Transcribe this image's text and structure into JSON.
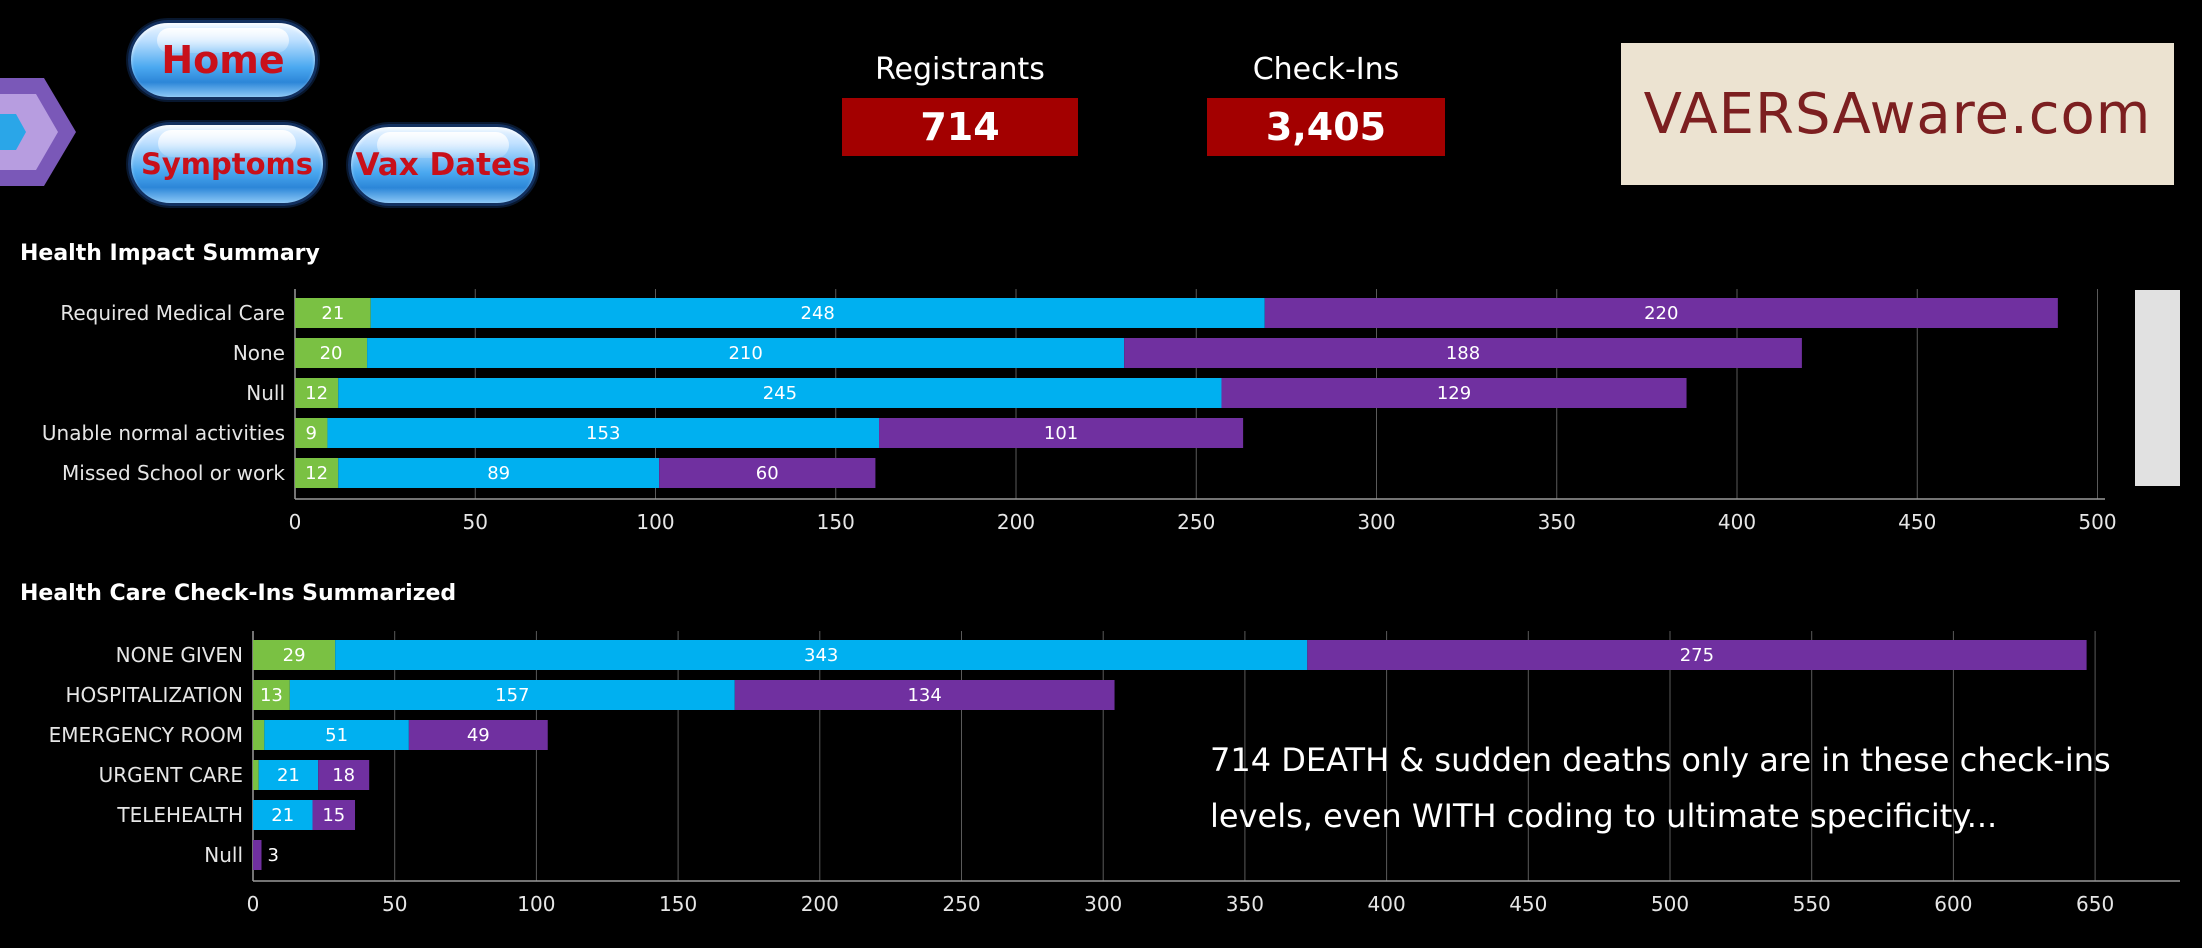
{
  "nav": {
    "home": "Home",
    "symptoms": "Symptoms",
    "vax_dates": "Vax Dates"
  },
  "kpis": {
    "registrants": {
      "label": "Registrants",
      "value": "714"
    },
    "checkins": {
      "label": "Check-Ins",
      "value": "3,405"
    }
  },
  "brand": {
    "text": "VAERSAware.com"
  },
  "annotation": {
    "line1": "714 DEATH & sudden deaths only are in these check-ins",
    "line2": "levels, even WITH coding to ultimate specificity..."
  },
  "colors": {
    "green": "#7ac143",
    "blue": "#00b0f0",
    "purple": "#7030a0",
    "kpi_red": "#a30000",
    "brand_bg": "#ece3d1",
    "brand_text": "#7c1f20"
  },
  "chart_data": [
    {
      "type": "bar",
      "orientation": "horizontal",
      "stacked": true,
      "title": "Health Impact Summary",
      "categories": [
        "Required Medical Care",
        "None",
        "Null",
        "Unable normal activities",
        "Missed School or work"
      ],
      "series": [
        {
          "values": [
            21,
            20,
            12,
            9,
            12
          ],
          "color": "#7ac143"
        },
        {
          "values": [
            248,
            210,
            245,
            153,
            89
          ],
          "color": "#00b0f0"
        },
        {
          "values": [
            220,
            188,
            129,
            101,
            60
          ],
          "color": "#7030a0"
        }
      ],
      "xlim": [
        0,
        515
      ],
      "xticks": [
        0,
        50,
        100,
        150,
        200,
        250,
        300,
        350,
        400,
        450,
        500
      ],
      "grid": true
    },
    {
      "type": "bar",
      "orientation": "horizontal",
      "stacked": true,
      "title": "Health Care Check-Ins Summarized",
      "categories": [
        "NONE GIVEN",
        "HOSPITALIZATION",
        "EMERGENCY ROOM",
        "URGENT CARE",
        "TELEHEALTH",
        "Null"
      ],
      "series": [
        {
          "values": [
            29,
            13,
            4,
            2,
            0,
            0
          ],
          "labels": [
            "29",
            "13",
            "",
            "",
            "",
            ""
          ],
          "color": "#7ac143"
        },
        {
          "values": [
            343,
            157,
            51,
            21,
            21,
            0
          ],
          "labels": [
            "343",
            "157",
            "51",
            "21",
            "21",
            ""
          ],
          "color": "#00b0f0"
        },
        {
          "values": [
            275,
            134,
            49,
            18,
            15,
            3
          ],
          "labels": [
            "275",
            "134",
            "49",
            "18",
            "15",
            "3"
          ],
          "color": "#7030a0"
        }
      ],
      "xlim": [
        0,
        680
      ],
      "xticks": [
        0,
        50,
        100,
        150,
        200,
        250,
        300,
        350,
        400,
        450,
        500,
        550,
        600,
        650
      ],
      "grid": true
    }
  ]
}
